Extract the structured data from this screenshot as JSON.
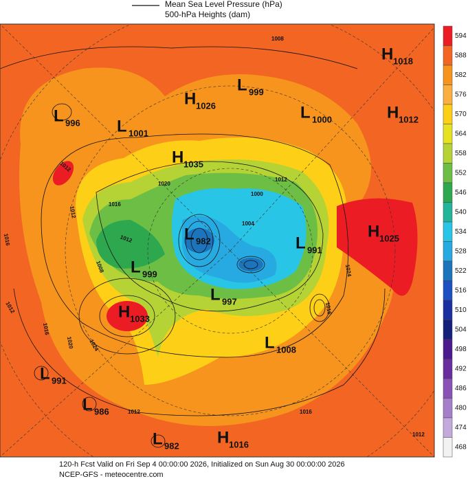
{
  "header": {
    "line1": "Mean Sea Level Pressure (hPa)",
    "line2": "500-hPa Heights (dam)"
  },
  "colorbar": [
    {
      "value": 594,
      "color": "#ec1c24"
    },
    {
      "value": 588,
      "color": "#f26522"
    },
    {
      "value": 582,
      "color": "#f7941d"
    },
    {
      "value": 576,
      "color": "#fbaf3f"
    },
    {
      "value": 570,
      "color": "#fdd017"
    },
    {
      "value": 564,
      "color": "#e6e221"
    },
    {
      "value": 558,
      "color": "#b5d334"
    },
    {
      "value": 552,
      "color": "#6cbe45"
    },
    {
      "value": 546,
      "color": "#2ea84f"
    },
    {
      "value": 540,
      "color": "#22b59a"
    },
    {
      "value": 534,
      "color": "#29c5e6"
    },
    {
      "value": 528,
      "color": "#27aae1"
    },
    {
      "value": 522,
      "color": "#1c75bc"
    },
    {
      "value": 516,
      "color": "#1b4fc2"
    },
    {
      "value": 510,
      "color": "#1a2fa0"
    },
    {
      "value": 504,
      "color": "#14207a"
    },
    {
      "value": 498,
      "color": "#4b1a8c"
    },
    {
      "value": 492,
      "color": "#6a2c9e"
    },
    {
      "value": 486,
      "color": "#8a52b6"
    },
    {
      "value": 480,
      "color": "#a57fca"
    },
    {
      "value": 474,
      "color": "#c4a9dc"
    },
    {
      "value": 468,
      "color": "#f2f2f2"
    }
  ],
  "centers": [
    {
      "letter": "H",
      "value": 1018
    },
    {
      "letter": "L",
      "value": 999
    },
    {
      "letter": "H",
      "value": 1026
    },
    {
      "letter": "L",
      "value": 996
    },
    {
      "letter": "L",
      "value": 1001
    },
    {
      "letter": "L",
      "value": 1000
    },
    {
      "letter": "H",
      "value": 1012
    },
    {
      "letter": "H",
      "value": 1035
    },
    {
      "letter": "L",
      "value": 982
    },
    {
      "letter": "L",
      "value": 991
    },
    {
      "letter": "H",
      "value": 1025
    },
    {
      "letter": "L",
      "value": 999
    },
    {
      "letter": "L",
      "value": 997
    },
    {
      "letter": "H",
      "value": 1033
    },
    {
      "letter": "L",
      "value": 1008
    },
    {
      "letter": "L",
      "value": 991
    },
    {
      "letter": "L",
      "value": 986
    },
    {
      "letter": "L",
      "value": 982
    },
    {
      "letter": "H",
      "value": 1016
    }
  ],
  "isobar_labels": [
    1008,
    1012,
    1012,
    1016,
    1012,
    1020,
    1012,
    1000,
    1004,
    1016,
    1008,
    1012,
    1016,
    1020,
    1024,
    1024,
    1016,
    1012,
    1016,
    1012
  ],
  "footer": {
    "line1": "120-h Fcst Valid on Fri Sep  4 00:00:00 2026, Initialized on Sun Aug 30 00:00:00 2026",
    "line2": "NCEP-GFS  - meteocentre.com"
  }
}
